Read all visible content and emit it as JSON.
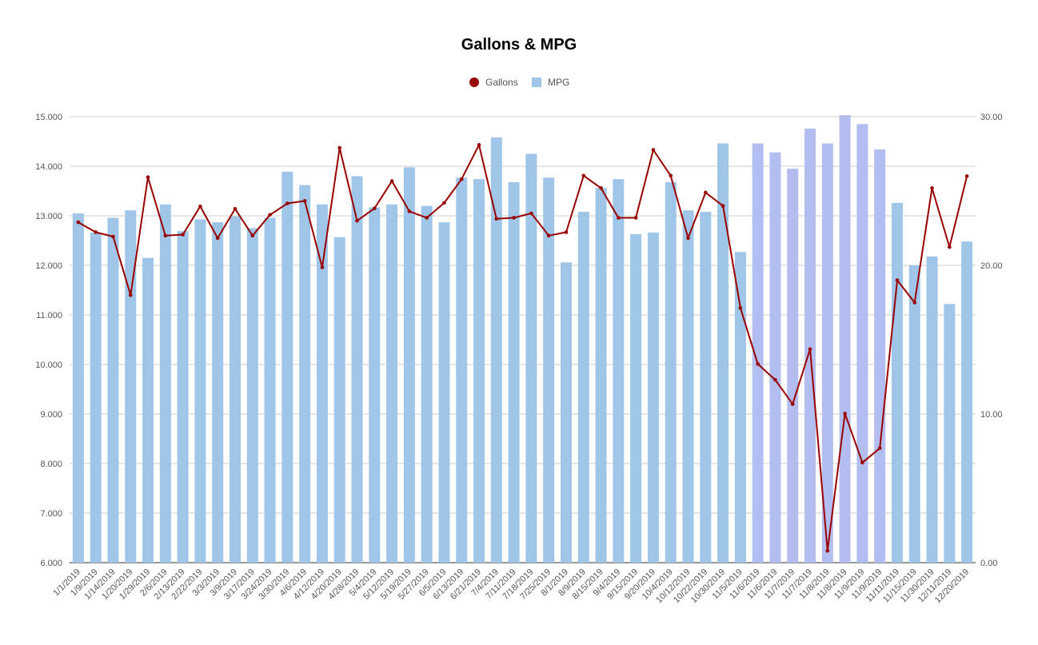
{
  "chart_data": {
    "type": "bar+line",
    "title": "Gallons & MPG",
    "legend": {
      "placement": "top",
      "entries": [
        {
          "name": "Gallons",
          "marker": "circle",
          "color": "#990000"
        },
        {
          "name": "MPG",
          "marker": "square",
          "color": "#9fc5e8"
        }
      ]
    },
    "categories": [
      "1/1/2019",
      "1/9/2019",
      "1/14/2019",
      "1/20/2019",
      "1/29/2019",
      "2/6/2019",
      "2/13/2019",
      "2/22/2019",
      "3/3/2019",
      "3/9/2019",
      "3/17/2019",
      "3/24/2019",
      "3/30/2019",
      "4/6/2019",
      "4/12/2019",
      "4/20/2019",
      "4/28/2019",
      "5/4/2019",
      "5/12/2019",
      "5/19/2019",
      "5/27/2019",
      "6/5/2019",
      "6/13/2019",
      "6/21/2019",
      "7/4/2019",
      "7/11/2019",
      "7/18/2019",
      "7/25/2019",
      "8/1/2019",
      "8/9/2019",
      "8/15/2019",
      "9/4/2019",
      "9/15/2019",
      "9/20/2019",
      "10/4/2019",
      "10/12/2019",
      "10/22/2019",
      "10/30/2019",
      "11/5/2019",
      "11/6/2019",
      "11/6/2019",
      "11/7/2019",
      "11/7/2019",
      "11/8/2019",
      "11/8/2019",
      "11/9/2019",
      "11/9/2019",
      "11/11/2019",
      "11/15/2019",
      "11/30/2019",
      "12/11/2019",
      "12/20/2019"
    ],
    "series": [
      {
        "name": "Gallons",
        "kind": "line",
        "axis": "left",
        "color": "#990000",
        "values": [
          12.87,
          12.67,
          12.58,
          11.4,
          13.78,
          12.6,
          12.62,
          13.19,
          12.55,
          13.14,
          12.6,
          13.02,
          13.25,
          13.3,
          11.96,
          14.37,
          12.9,
          13.15,
          13.7,
          13.09,
          12.96,
          13.26,
          13.74,
          14.43,
          12.94,
          12.96,
          13.05,
          12.6,
          12.67,
          13.81,
          13.56,
          12.96,
          12.96,
          14.33,
          13.81,
          12.55,
          13.47,
          13.2,
          11.14,
          10.01,
          9.69,
          9.2,
          10.31,
          6.24,
          9.01,
          8.02,
          8.31,
          11.7,
          11.25,
          13.56,
          12.37,
          13.8
        ]
      },
      {
        "name": "MPG",
        "kind": "bar",
        "axis": "right",
        "color": "#9fc5e8",
        "highlight_color": "#b4bdef",
        "highlight_indices": [
          39,
          40,
          41,
          42,
          43,
          44,
          45,
          46
        ],
        "values": [
          23.5,
          22.2,
          23.2,
          23.7,
          20.5,
          24.1,
          22.3,
          23.1,
          22.9,
          23.3,
          22.5,
          23.2,
          26.3,
          25.4,
          24.1,
          21.9,
          26.0,
          23.9,
          24.1,
          26.6,
          24.0,
          22.9,
          25.9,
          25.8,
          28.6,
          25.6,
          27.5,
          25.9,
          20.2,
          23.6,
          25.2,
          25.8,
          22.1,
          22.2,
          25.6,
          23.7,
          23.6,
          28.2,
          20.9,
          28.2,
          27.6,
          26.5,
          29.2,
          28.2,
          30.1,
          29.5,
          27.8,
          24.2,
          20.0,
          20.6,
          17.4,
          21.6
        ]
      }
    ],
    "y_left": {
      "range": [
        6,
        15
      ],
      "ticks": [
        "6.000",
        "7.000",
        "8.000",
        "9.000",
        "10.000",
        "11.000",
        "12.000",
        "13.000",
        "14.000",
        "15.000"
      ]
    },
    "y_right": {
      "range": [
        0,
        30
      ],
      "ticks": [
        "0.00",
        "10.00",
        "20.00",
        "30.00"
      ]
    },
    "grid": true
  }
}
